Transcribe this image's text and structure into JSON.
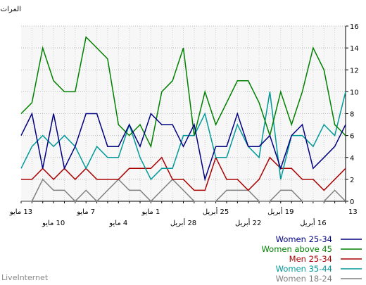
{
  "chart_data": {
    "type": "line",
    "ylabel": "المرات",
    "ylim": [
      0,
      16
    ],
    "yticks": [
      0,
      2,
      4,
      6,
      8,
      10,
      12,
      14,
      16
    ],
    "grid": true,
    "x": [
      "13 مايو",
      "12 مايو",
      "11 مايو",
      "10 مايو",
      "9 مايو",
      "8 مايو",
      "7 مايو",
      "6 مايو",
      "5 مايو",
      "4 مايو",
      "3 مايو",
      "2 مايو",
      "1 مايو",
      "30 أبريل",
      "29 أبريل",
      "28 أبريل",
      "27 أبريل",
      "26 أبريل",
      "25 أبريل",
      "24 أبريل",
      "23 أبريل",
      "22 أبريل",
      "21 أبريل",
      "20 أبريل",
      "19 أبريل",
      "18 أبريل",
      "17 أبريل",
      "16 أبريل",
      "15 أبريل",
      "14 أبريل",
      "13 أبريل"
    ],
    "xtick_labels": [
      {
        "i": 0,
        "label": "13 مايو",
        "row": 1
      },
      {
        "i": 3,
        "label": "10 مايو",
        "row": 2
      },
      {
        "i": 6,
        "label": "7 مايو",
        "row": 1
      },
      {
        "i": 9,
        "label": "4 مايو",
        "row": 2
      },
      {
        "i": 12,
        "label": "1 مايو",
        "row": 1
      },
      {
        "i": 15,
        "label": "28 أبريل",
        "row": 2
      },
      {
        "i": 18,
        "label": "25 أبريل",
        "row": 1
      },
      {
        "i": 21,
        "label": "22 أبريل",
        "row": 2
      },
      {
        "i": 24,
        "label": "19 أبريل",
        "row": 1
      },
      {
        "i": 27,
        "label": "16 أبريل",
        "row": 2
      },
      {
        "i": 30,
        "label": "13",
        "row": 1
      }
    ],
    "series": [
      {
        "name": "Women 25-34",
        "color": "#000080",
        "values": [
          6,
          8,
          3,
          8,
          3,
          5,
          8,
          8,
          5,
          5,
          7,
          5,
          8,
          7,
          7,
          5,
          7,
          2,
          5,
          5,
          8,
          5,
          5,
          6,
          3,
          6,
          7,
          3,
          4,
          5,
          7
        ]
      },
      {
        "name": "Women above 45",
        "color": "#008000",
        "values": [
          8,
          9,
          14,
          11,
          10,
          10,
          15,
          14,
          13,
          7,
          6,
          7,
          5,
          10,
          11,
          14,
          6,
          10,
          7,
          9,
          11,
          11,
          9,
          6,
          10,
          7,
          10,
          14,
          12,
          7,
          6
        ]
      },
      {
        "name": "Men 25-34",
        "color": "#aa0000",
        "values": [
          2,
          2,
          3,
          2,
          3,
          2,
          3,
          2,
          2,
          2,
          3,
          3,
          3,
          4,
          2,
          2,
          1,
          1,
          4,
          2,
          2,
          1,
          2,
          4,
          3,
          3,
          2,
          2,
          1,
          2,
          3
        ]
      },
      {
        "name": "Women 35-44",
        "color": "#009999",
        "values": [
          3,
          5,
          6,
          5,
          6,
          5,
          3,
          5,
          4,
          4,
          7,
          4,
          2,
          3,
          3,
          6,
          6,
          8,
          4,
          4,
          7,
          5,
          4,
          10,
          2,
          6,
          6,
          5,
          7,
          6,
          10
        ]
      },
      {
        "name": "Women 18-24",
        "color": "#808080",
        "values": [
          0,
          0,
          2,
          1,
          1,
          0,
          1,
          0,
          1,
          2,
          1,
          1,
          0,
          1,
          2,
          1,
          0,
          0,
          0,
          1,
          1,
          1,
          0,
          0,
          1,
          1,
          0,
          0,
          0,
          1,
          0
        ]
      }
    ]
  },
  "footer": "LiveInternet"
}
